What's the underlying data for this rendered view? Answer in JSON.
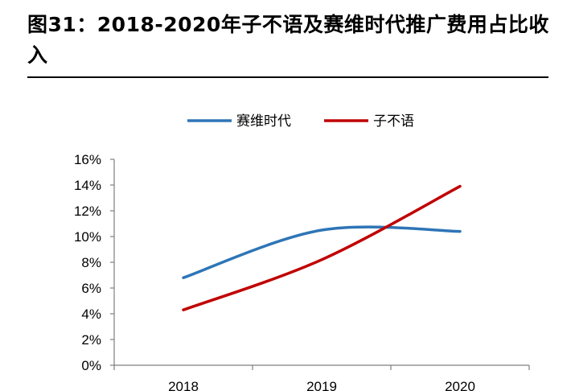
{
  "title": "图31：2018-2020年子不语及赛维时代推广费用占比收入",
  "chart_data": {
    "type": "line",
    "categories": [
      "2018",
      "2019",
      "2020"
    ],
    "series": [
      {
        "name": "赛维时代",
        "values": [
          6.8,
          10.5,
          10.4
        ],
        "color": "#2e75b6"
      },
      {
        "name": "子不语",
        "values": [
          4.3,
          8.2,
          13.9
        ],
        "color": "#c00000"
      }
    ],
    "ylim": [
      0,
      16
    ],
    "yticks": [
      "0%",
      "2%",
      "4%",
      "6%",
      "8%",
      "10%",
      "12%",
      "14%",
      "16%"
    ],
    "legend_position": "top-center",
    "grid": false,
    "smooth": true
  }
}
